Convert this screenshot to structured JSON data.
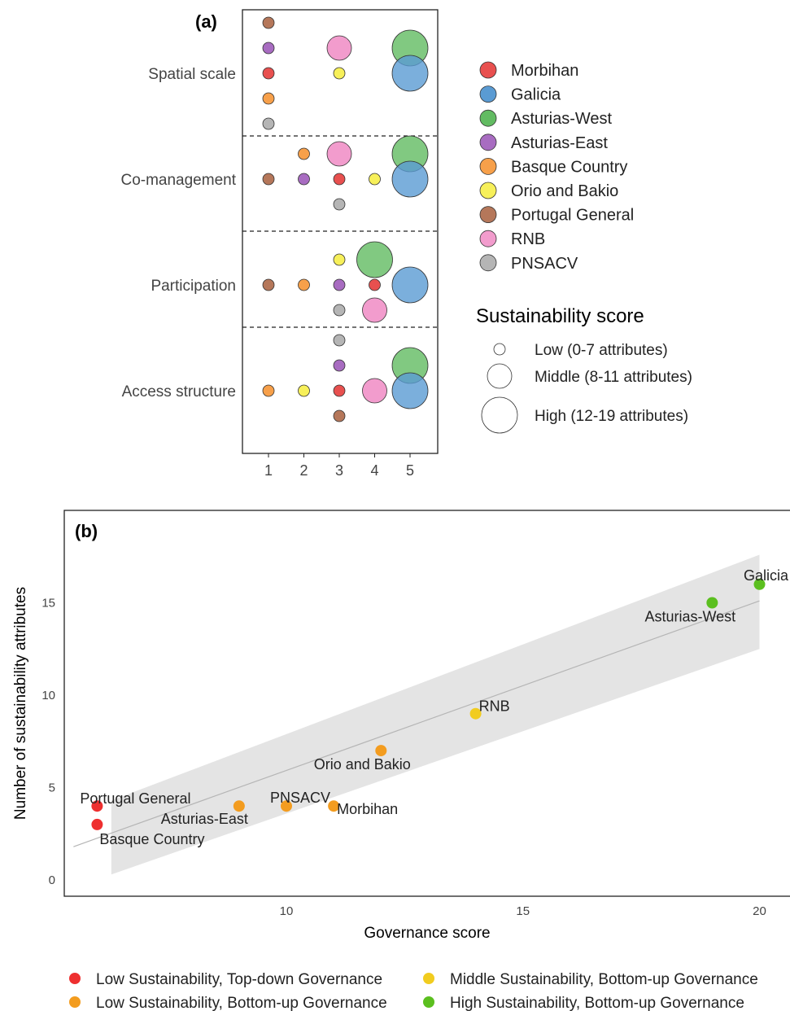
{
  "colors": {
    "Morbihan": "#e8504f",
    "Galicia": "#5a9bd3",
    "Asturias-West": "#62bb62",
    "Asturias-East": "#a86cc1",
    "Basque Country": "#f7a04a",
    "Orio and Bakio": "#f7f05a",
    "Portugal General": "#b5775a",
    "RNB": "#f29ccd",
    "PNSACV": "#b5b5b5",
    "low_topdown": "#ee2f2f",
    "low_bottomup": "#f39c1f",
    "mid_bottomup": "#f1cc1f",
    "high_bottomup": "#5bbf1f"
  },
  "chart_data": [
    {
      "type": "scatter",
      "panel_label": "(a)",
      "title": "",
      "xlabel": "",
      "ylabel": "",
      "x_ticks": [
        "1",
        "2",
        "3",
        "4",
        "5"
      ],
      "xlim": [
        0.3,
        5.8
      ],
      "rows": [
        "Spatial scale",
        "Co-management",
        "Participation",
        "Access structure"
      ],
      "legend": {
        "placement": "right",
        "sites": [
          "Morbihan",
          "Galicia",
          "Asturias-West",
          "Asturias-East",
          "Basque Country",
          "Orio and Bakio",
          "Portugal General",
          "RNB",
          "PNSACV"
        ],
        "size_title": "Sustainability score",
        "size_items": [
          {
            "label": "Low (0-7 attributes)",
            "size": "Low"
          },
          {
            "label": "Middle (8-11 attributes)",
            "size": "Middle"
          },
          {
            "label": "High (12-19 attributes)",
            "size": "High"
          }
        ]
      },
      "points": [
        {
          "row": "Spatial scale",
          "x": 1,
          "offset": 2,
          "site": "Portugal General",
          "size": "Low"
        },
        {
          "row": "Spatial scale",
          "x": 1,
          "offset": 1,
          "site": "Asturias-East",
          "size": "Low"
        },
        {
          "row": "Spatial scale",
          "x": 1,
          "offset": 0,
          "site": "Morbihan",
          "size": "Low"
        },
        {
          "row": "Spatial scale",
          "x": 1,
          "offset": -1,
          "site": "Basque Country",
          "size": "Low"
        },
        {
          "row": "Spatial scale",
          "x": 1,
          "offset": -2,
          "site": "PNSACV",
          "size": "Low"
        },
        {
          "row": "Spatial scale",
          "x": 3,
          "offset": 1,
          "site": "RNB",
          "size": "Middle"
        },
        {
          "row": "Spatial scale",
          "x": 3,
          "offset": 0,
          "site": "Orio and Bakio",
          "size": "Low"
        },
        {
          "row": "Spatial scale",
          "x": 5,
          "offset": 1,
          "site": "Asturias-West",
          "size": "High"
        },
        {
          "row": "Spatial scale",
          "x": 5,
          "offset": 0,
          "site": "Galicia",
          "size": "High"
        },
        {
          "row": "Co-management",
          "x": 1,
          "offset": 0,
          "site": "Portugal General",
          "size": "Low"
        },
        {
          "row": "Co-management",
          "x": 2,
          "offset": 1,
          "site": "Basque Country",
          "size": "Low"
        },
        {
          "row": "Co-management",
          "x": 2,
          "offset": 0,
          "site": "Asturias-East",
          "size": "Low"
        },
        {
          "row": "Co-management",
          "x": 3,
          "offset": 1,
          "site": "RNB",
          "size": "Middle"
        },
        {
          "row": "Co-management",
          "x": 3,
          "offset": 0,
          "site": "Morbihan",
          "size": "Low"
        },
        {
          "row": "Co-management",
          "x": 3,
          "offset": -1,
          "site": "PNSACV",
          "size": "Low"
        },
        {
          "row": "Co-management",
          "x": 4,
          "offset": 0,
          "site": "Orio and Bakio",
          "size": "Low"
        },
        {
          "row": "Co-management",
          "x": 5,
          "offset": 1,
          "site": "Asturias-West",
          "size": "High"
        },
        {
          "row": "Co-management",
          "x": 5,
          "offset": 0,
          "site": "Galicia",
          "size": "High"
        },
        {
          "row": "Participation",
          "x": 1,
          "offset": 0,
          "site": "Portugal General",
          "size": "Low"
        },
        {
          "row": "Participation",
          "x": 2,
          "offset": 0,
          "site": "Basque Country",
          "size": "Low"
        },
        {
          "row": "Participation",
          "x": 3,
          "offset": 1,
          "site": "Orio and Bakio",
          "size": "Low"
        },
        {
          "row": "Participation",
          "x": 3,
          "offset": 0,
          "site": "Asturias-East",
          "size": "Low"
        },
        {
          "row": "Participation",
          "x": 3,
          "offset": -1,
          "site": "PNSACV",
          "size": "Low"
        },
        {
          "row": "Participation",
          "x": 4,
          "offset": 1,
          "site": "Asturias-West",
          "size": "High"
        },
        {
          "row": "Participation",
          "x": 4,
          "offset": 0,
          "site": "Morbihan",
          "size": "Low"
        },
        {
          "row": "Participation",
          "x": 4,
          "offset": -1,
          "site": "RNB",
          "size": "Middle"
        },
        {
          "row": "Participation",
          "x": 5,
          "offset": 0,
          "site": "Galicia",
          "size": "High"
        },
        {
          "row": "Access structure",
          "x": 1,
          "offset": 0,
          "site": "Basque Country",
          "size": "Low"
        },
        {
          "row": "Access structure",
          "x": 2,
          "offset": 0,
          "site": "Orio and Bakio",
          "size": "Low"
        },
        {
          "row": "Access structure",
          "x": 3,
          "offset": 2,
          "site": "PNSACV",
          "size": "Low"
        },
        {
          "row": "Access structure",
          "x": 3,
          "offset": 1,
          "site": "Asturias-East",
          "size": "Low"
        },
        {
          "row": "Access structure",
          "x": 3,
          "offset": 0,
          "site": "Morbihan",
          "size": "Low"
        },
        {
          "row": "Access structure",
          "x": 3,
          "offset": -1,
          "site": "Portugal General",
          "size": "Low"
        },
        {
          "row": "Access structure",
          "x": 4,
          "offset": 0,
          "site": "RNB",
          "size": "Middle"
        },
        {
          "row": "Access structure",
          "x": 5,
          "offset": 1,
          "site": "Asturias-West",
          "size": "High"
        },
        {
          "row": "Access structure",
          "x": 5,
          "offset": 0,
          "site": "Galicia",
          "size": "High"
        }
      ]
    },
    {
      "type": "scatter",
      "panel_label": "(b)",
      "title": "",
      "xlabel": "Governance score",
      "ylabel": "Number of sustainability attributes",
      "xlim": [
        4.5,
        21
      ],
      "ylim": [
        -1,
        19
      ],
      "x_ticks": [
        10,
        15,
        20
      ],
      "y_ticks": [
        0,
        5,
        10,
        15
      ],
      "grid": false,
      "trend": {
        "type": "linear",
        "x_range": [
          6.3,
          20
        ],
        "line": [
          [
            5.5,
            1.8
          ],
          [
            20,
            15.1
          ]
        ],
        "band_upper": [
          [
            6.3,
            4.3
          ],
          [
            20,
            17.6
          ]
        ],
        "band_lower": [
          [
            6.3,
            0.3
          ],
          [
            20,
            12.5
          ]
        ]
      },
      "points": [
        {
          "x": 6,
          "y": 4,
          "label": "Portugal General",
          "group": "low_topdown"
        },
        {
          "x": 6,
          "y": 3,
          "label": "Basque Country",
          "group": "low_topdown"
        },
        {
          "x": 9,
          "y": 4,
          "label": "Asturias-East",
          "group": "low_bottomup"
        },
        {
          "x": 10,
          "y": 4,
          "label": "PNSACV",
          "group": "low_bottomup"
        },
        {
          "x": 11,
          "y": 4,
          "label": "Morbihan",
          "group": "low_bottomup"
        },
        {
          "x": 12,
          "y": 7,
          "label": "Orio and Bakio",
          "group": "low_bottomup"
        },
        {
          "x": 14,
          "y": 9,
          "label": "RNB",
          "group": "mid_bottomup"
        },
        {
          "x": 19,
          "y": 15,
          "label": "Asturias-West",
          "group": "high_bottomup"
        },
        {
          "x": 20,
          "y": 16,
          "label": "Galicia",
          "group": "high_bottomup"
        }
      ],
      "legend": {
        "placement": "bottom",
        "items": [
          {
            "group": "low_topdown",
            "label": "Low Sustainability, Top-down Governance"
          },
          {
            "group": "mid_bottomup",
            "label": "Middle Sustainability, Bottom-up Governance"
          },
          {
            "group": "low_bottomup",
            "label": "Low Sustainability, Bottom-up Governance"
          },
          {
            "group": "high_bottomup",
            "label": "High Sustainability, Bottom-up Governance"
          }
        ]
      }
    }
  ]
}
